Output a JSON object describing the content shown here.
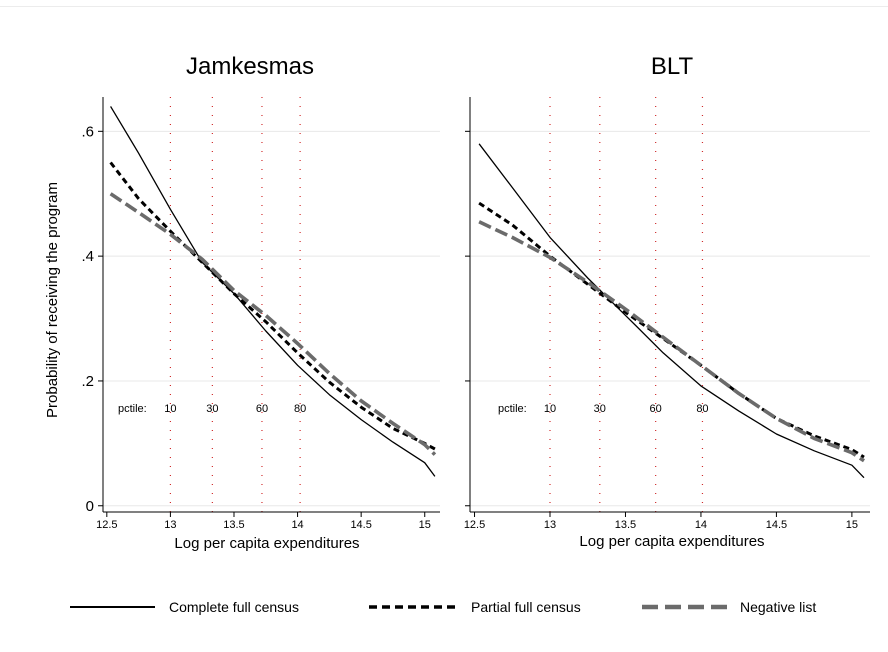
{
  "chart_data": [
    {
      "type": "line",
      "title": "Jamkesmas",
      "xlabel": "Log per capita expenditures",
      "ylabel": "Probability of receiving the program",
      "xlim": [
        12.47,
        15.12
      ],
      "ylim": [
        -0.01,
        0.655
      ],
      "xticks": [
        12.5,
        13,
        13.5,
        14,
        14.5,
        15
      ],
      "xtick_labels": [
        "12.5",
        "13",
        "13.5",
        "14",
        "14.5",
        "15"
      ],
      "yticks": [
        0,
        0.2,
        0.4,
        0.6
      ],
      "ytick_labels": [
        "0",
        ".2",
        ".4",
        ".6"
      ],
      "grid": true,
      "percentile_label": "pctile:",
      "percentiles": [
        {
          "label": "10",
          "x": 13.0
        },
        {
          "label": "30",
          "x": 13.33
        },
        {
          "label": "60",
          "x": 13.72
        },
        {
          "label": "80",
          "x": 14.02
        }
      ],
      "series": [
        {
          "name": "Complete full census",
          "x": [
            12.53,
            12.75,
            13.0,
            13.25,
            13.5,
            13.75,
            14.0,
            14.25,
            14.5,
            14.75,
            15.0,
            15.08
          ],
          "y": [
            0.64,
            0.565,
            0.475,
            0.39,
            0.34,
            0.28,
            0.225,
            0.178,
            0.138,
            0.102,
            0.069,
            0.047
          ]
        },
        {
          "name": "Partial full census",
          "x": [
            12.53,
            12.75,
            13.0,
            13.25,
            13.5,
            13.75,
            14.0,
            14.25,
            14.5,
            14.75,
            15.0,
            15.08
          ],
          "y": [
            0.55,
            0.492,
            0.44,
            0.39,
            0.34,
            0.295,
            0.245,
            0.198,
            0.158,
            0.124,
            0.1,
            0.091
          ]
        },
        {
          "name": "Negative list",
          "x": [
            12.53,
            12.75,
            13.0,
            13.25,
            13.5,
            13.75,
            14.0,
            14.25,
            14.5,
            14.75,
            15.0,
            15.08
          ],
          "y": [
            0.5,
            0.47,
            0.435,
            0.395,
            0.345,
            0.305,
            0.26,
            0.212,
            0.168,
            0.132,
            0.098,
            0.082
          ]
        }
      ]
    },
    {
      "type": "line",
      "title": "BLT",
      "xlabel": "Log per capita expenditures",
      "ylabel": "",
      "xlim": [
        12.47,
        15.12
      ],
      "ylim": [
        -0.01,
        0.655
      ],
      "xticks": [
        12.5,
        13,
        13.5,
        14,
        14.5,
        15
      ],
      "xtick_labels": [
        "12.5",
        "13",
        "13.5",
        "14",
        "14.5",
        "15"
      ],
      "yticks": [
        0,
        0.2,
        0.4,
        0.6
      ],
      "ytick_labels": [
        "",
        "",
        "",
        ""
      ],
      "grid": true,
      "percentile_label": "pctile:",
      "percentiles": [
        {
          "label": "10",
          "x": 13.0
        },
        {
          "label": "30",
          "x": 13.33
        },
        {
          "label": "60",
          "x": 13.7
        },
        {
          "label": "80",
          "x": 14.01
        }
      ],
      "series": [
        {
          "name": "Complete full census",
          "x": [
            12.53,
            12.75,
            13.0,
            13.25,
            13.5,
            13.75,
            14.0,
            14.25,
            14.5,
            14.75,
            15.0,
            15.08
          ],
          "y": [
            0.58,
            0.51,
            0.43,
            0.365,
            0.305,
            0.245,
            0.192,
            0.152,
            0.115,
            0.088,
            0.065,
            0.045
          ]
        },
        {
          "name": "Partial full census",
          "x": [
            12.53,
            12.75,
            13.0,
            13.25,
            13.5,
            13.75,
            14.0,
            14.25,
            14.5,
            14.75,
            15.0,
            15.08
          ],
          "y": [
            0.485,
            0.45,
            0.4,
            0.355,
            0.31,
            0.268,
            0.225,
            0.18,
            0.14,
            0.112,
            0.09,
            0.078
          ]
        },
        {
          "name": "Negative list",
          "x": [
            12.53,
            12.75,
            13.0,
            13.25,
            13.5,
            13.75,
            14.0,
            14.25,
            14.5,
            14.75,
            15.0,
            15.08
          ],
          "y": [
            0.455,
            0.43,
            0.398,
            0.358,
            0.315,
            0.27,
            0.225,
            0.18,
            0.14,
            0.108,
            0.085,
            0.072
          ]
        }
      ]
    }
  ],
  "legend": {
    "position": "bottom",
    "items": [
      {
        "label": "Complete full census",
        "style": "solid",
        "color": "#000000"
      },
      {
        "label": "Partial full census",
        "style": "short-dash",
        "color": "#000000"
      },
      {
        "label": "Negative list",
        "style": "long-dash",
        "color": "#6b6b6b"
      }
    ]
  },
  "colors": {
    "series_solid": "#000000",
    "series_dash": "#000000",
    "series_longdash": "#6b6b6b",
    "percentile_lines": "#d02b2b",
    "grid": "#e8e8e8"
  }
}
